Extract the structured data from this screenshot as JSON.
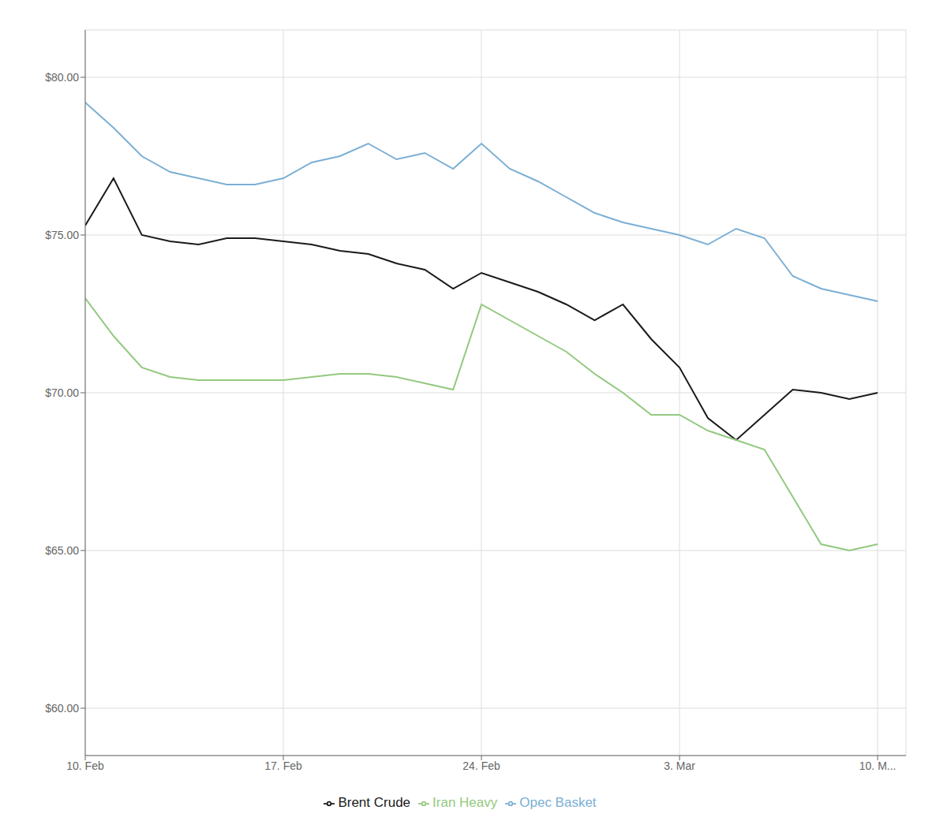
{
  "chart_data": {
    "type": "line",
    "x": [
      0,
      1,
      2,
      3,
      4,
      5,
      6,
      7,
      8,
      9,
      10,
      11,
      12,
      13,
      14,
      15,
      16,
      17,
      18,
      19,
      20,
      21,
      22,
      23,
      24,
      25,
      26,
      27,
      28
    ],
    "series": [
      {
        "name": "Opec Basket",
        "color": "#7bafd4",
        "values": [
          79.2,
          78.4,
          77.5,
          77.0,
          76.8,
          76.6,
          76.6,
          76.8,
          77.3,
          77.5,
          77.9,
          77.4,
          77.6,
          77.1,
          77.9,
          77.1,
          76.7,
          76.2,
          75.7,
          75.4,
          75.2,
          75.0,
          74.7,
          75.2,
          74.9,
          73.7,
          73.3,
          73.1,
          72.9
        ]
      },
      {
        "name": "Brent Crude",
        "color": "#1a1a1a",
        "values": [
          75.3,
          76.8,
          75.0,
          74.8,
          74.7,
          74.9,
          74.9,
          74.8,
          74.7,
          74.5,
          74.4,
          74.1,
          73.9,
          73.3,
          73.8,
          73.5,
          73.2,
          72.8,
          72.3,
          72.8,
          71.7,
          70.8,
          69.2,
          68.5,
          69.3,
          70.1,
          70.0,
          69.8,
          70.0
        ]
      },
      {
        "name": "Iran Heavy",
        "color": "#92c97e",
        "values": [
          73.0,
          71.8,
          70.8,
          70.5,
          70.4,
          70.4,
          70.4,
          70.4,
          70.5,
          70.6,
          70.6,
          70.5,
          70.3,
          70.1,
          72.8,
          72.3,
          71.8,
          71.3,
          70.6,
          70.0,
          69.3,
          69.3,
          68.8,
          68.5,
          68.2,
          66.7,
          65.2,
          65.0,
          65.2
        ]
      }
    ],
    "xlim": [
      0,
      29
    ],
    "xticks": [
      {
        "value": 0,
        "label": "10. Feb"
      },
      {
        "value": 7,
        "label": "17. Feb"
      },
      {
        "value": 14,
        "label": "24. Feb"
      },
      {
        "value": 21,
        "label": "3. Mar"
      },
      {
        "value": 28,
        "label": "10. M..."
      }
    ],
    "ylim": [
      58.5,
      81.5
    ],
    "yticks": [
      {
        "value": 60.0,
        "label": "$60.00"
      },
      {
        "value": 65.0,
        "label": "$65.00"
      },
      {
        "value": 70.0,
        "label": "$70.00"
      },
      {
        "value": 75.0,
        "label": "$75.00"
      },
      {
        "value": 80.0,
        "label": "$80.00"
      }
    ],
    "grid": true,
    "legend": "bottom"
  }
}
